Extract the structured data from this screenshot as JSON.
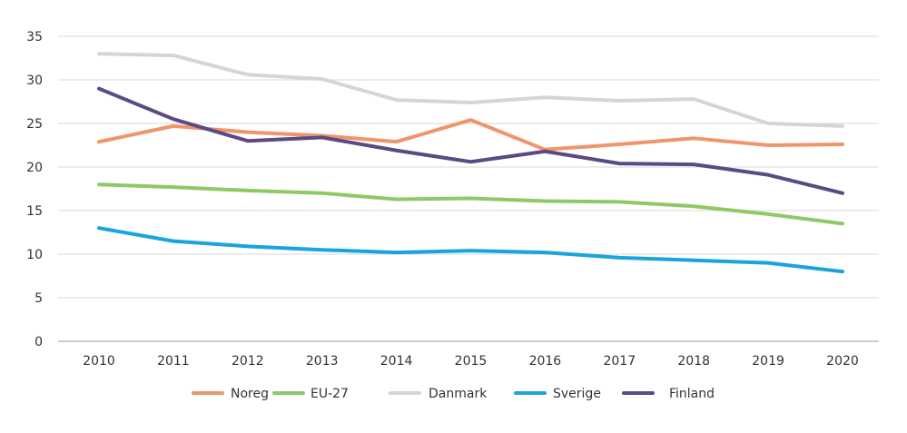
{
  "chart_data": {
    "type": "line",
    "title": "",
    "xlabel": "",
    "ylabel": "",
    "x": [
      2010,
      2011,
      2012,
      2013,
      2014,
      2015,
      2016,
      2017,
      2018,
      2019,
      2020
    ],
    "ylim": [
      0,
      35
    ],
    "yticks": [
      0,
      5,
      10,
      15,
      20,
      25,
      30,
      35
    ],
    "grid": "horizontal",
    "legend": "bottom",
    "series": [
      {
        "name": "Noreg",
        "color": "#f0956a",
        "values": [
          22.9,
          24.7,
          24.0,
          23.6,
          22.9,
          25.4,
          22.0,
          22.6,
          23.3,
          22.5,
          22.6
        ]
      },
      {
        "name": "EU-27",
        "color": "#8dc965",
        "values": [
          18.0,
          17.7,
          17.3,
          17.0,
          16.3,
          16.4,
          16.1,
          16.0,
          15.5,
          14.6,
          13.5
        ]
      },
      {
        "name": "Danmark",
        "color": "#d5d5d5",
        "values": [
          33.0,
          32.8,
          30.6,
          30.1,
          27.7,
          27.4,
          28.0,
          27.6,
          27.8,
          25.0,
          24.7
        ]
      },
      {
        "name": "Sverige",
        "color": "#1aa3dc",
        "values": [
          13.0,
          11.5,
          10.9,
          10.5,
          10.2,
          10.4,
          10.2,
          9.6,
          9.3,
          9.0,
          8.0
        ]
      },
      {
        "name": "Finland",
        "color": "#5b4a83",
        "values": [
          29.0,
          25.5,
          23.0,
          23.4,
          21.9,
          20.6,
          21.8,
          20.4,
          20.3,
          19.1,
          17.0
        ]
      }
    ]
  }
}
